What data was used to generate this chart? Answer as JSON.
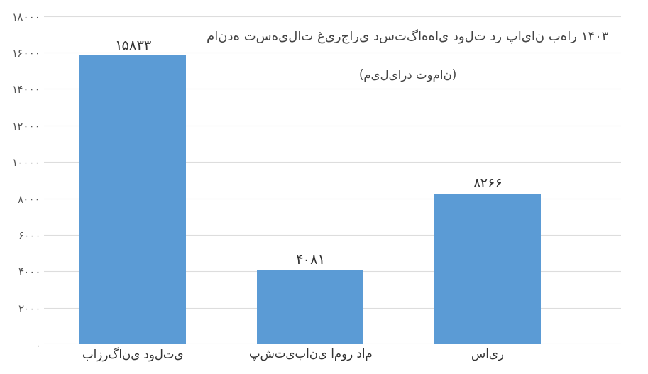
{
  "categories": [
    "بازرگانی دولتی",
    "پشتیبانی امور دام",
    "سایر"
  ],
  "values": [
    15833,
    4081,
    8266
  ],
  "bar_color": "#5B9BD5",
  "title_line1": "مانده تسهیلات غیرجاری دستگاه‌های دولت در پایان بهار ۱۴۰۳",
  "title_line2": "(میلیارد تومان)",
  "ylim": [
    0,
    18000
  ],
  "yticks": [
    0,
    2000,
    4000,
    6000,
    8000,
    10000,
    12000,
    14000,
    16000,
    18000
  ],
  "ytick_labels": [
    "۰",
    "۲۰۰۰",
    "۴۰۰۰",
    "۶۰۰۰",
    "۸۰۰۰",
    "۱۰۰۰۰",
    "۱۲۰۰۰",
    "۱۴۰۰۰",
    "۱۶۰۰۰",
    "۱۸۰۰۰"
  ],
  "bar_labels": [
    "۱۵۸۳۳",
    "۴۰۸۱",
    "۸۲۶۶"
  ],
  "background_color": "#ffffff",
  "grid_color": "#dddddd",
  "x_positions": [
    1,
    3,
    5
  ],
  "bar_width": 1.2,
  "xlim": [
    0,
    6.5
  ]
}
